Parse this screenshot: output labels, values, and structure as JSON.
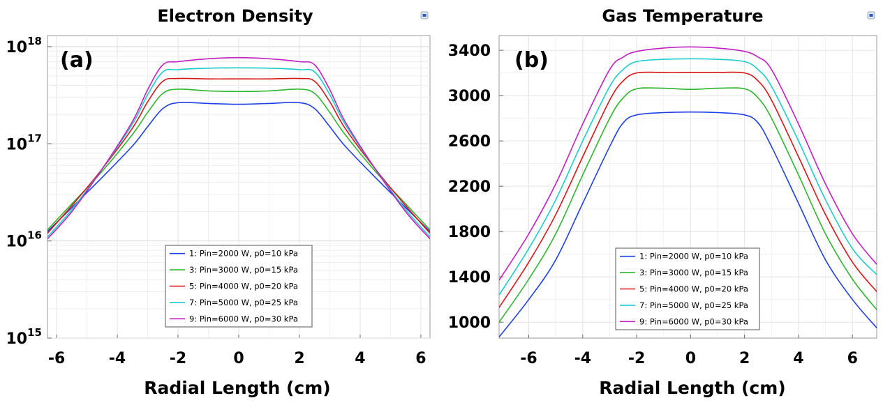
{
  "chart_data": [
    {
      "type": "line",
      "title": "Electron Density",
      "panel_tag": "(a)",
      "xlabel": "Radial Length (cm)",
      "ylabel": "",
      "yscale": "log",
      "xlim": [
        -6.3,
        6.3
      ],
      "ylim": [
        1000000000000000.0,
        1.3e+18
      ],
      "x_ticks": [
        -6,
        -4,
        -2,
        0,
        2,
        4,
        6
      ],
      "x_tick_labels": [
        "-6",
        "-4",
        "-2",
        "0",
        "2",
        "4",
        "6"
      ],
      "y_ticks": [
        {
          "base": "10",
          "exp": "15",
          "value": 1000000000000000.0
        },
        {
          "base": "10",
          "exp": "16",
          "value": 1e+16
        },
        {
          "base": "10",
          "exp": "17",
          "value": 1e+17
        },
        {
          "base": "10",
          "exp": "18",
          "value": 1e+18
        }
      ],
      "legend_position": "bottom-center",
      "series": [
        {
          "name": "1: Pin=2000 W, p0=10 kPa",
          "color": "#1f3fe6",
          "x": [
            -6.3,
            -5.5,
            -4.5,
            -3.5,
            -3.0,
            -2.5,
            -2.0,
            -1.0,
            0,
            1.0,
            2.0,
            2.5,
            3.0,
            3.5,
            4.5,
            5.5,
            6.3
          ],
          "y": [
            1.25e+16,
            2.2e+16,
            4.5e+16,
            9.5e+16,
            1.5e+17,
            2.3e+17,
            2.65e+17,
            2.6e+17,
            2.55e+17,
            2.6e+17,
            2.65e+17,
            2.3e+17,
            1.5e+17,
            9.5e+16,
            4.5e+16,
            2.2e+16,
            1.25e+16
          ]
        },
        {
          "name": "3: Pin=3000 W, p0=15 kPa",
          "color": "#2db52d",
          "x": [
            -6.3,
            -5.5,
            -4.5,
            -3.5,
            -3.0,
            -2.5,
            -2.0,
            -1.0,
            0,
            1.0,
            2.0,
            2.5,
            3.0,
            3.5,
            4.5,
            5.5,
            6.3
          ],
          "y": [
            1.3e+16,
            2.4e+16,
            5.2e+16,
            1.25e+17,
            2.1e+17,
            3.3e+17,
            3.65e+17,
            3.5e+17,
            3.45e+17,
            3.5e+17,
            3.65e+17,
            3.3e+17,
            2.1e+17,
            1.25e+17,
            5.2e+16,
            2.4e+16,
            1.3e+16
          ]
        },
        {
          "name": "5: Pin=4000 W, p0=20 kPa",
          "color": "#d91414",
          "x": [
            -6.3,
            -5.5,
            -4.5,
            -3.5,
            -3.0,
            -2.5,
            -2.0,
            -1.0,
            0,
            1.0,
            2.0,
            2.5,
            3.0,
            3.5,
            4.5,
            5.5,
            6.3
          ],
          "y": [
            1.2e+16,
            2.3e+16,
            5.5e+16,
            1.45e+17,
            2.7e+17,
            4.4e+17,
            4.7e+17,
            4.65e+17,
            4.65e+17,
            4.65e+17,
            4.7e+17,
            4.4e+17,
            2.7e+17,
            1.45e+17,
            5.5e+16,
            2.3e+16,
            1.2e+16
          ]
        },
        {
          "name": "7: Pin=5000 W, p0=25 kPa",
          "color": "#19cccc",
          "x": [
            -6.3,
            -5.5,
            -4.5,
            -3.5,
            -3.0,
            -2.5,
            -2.0,
            -1.0,
            0,
            1.0,
            2.0,
            2.5,
            3.0,
            3.5,
            4.5,
            5.5,
            6.3
          ],
          "y": [
            1.1e+16,
            2.1e+16,
            5.5e+16,
            1.6e+17,
            3.2e+17,
            5.5e+17,
            5.8e+17,
            6e+17,
            6.05e+17,
            6e+17,
            5.8e+17,
            5.5e+17,
            3.2e+17,
            1.6e+17,
            5.5e+16,
            2.1e+16,
            1.1e+16
          ]
        },
        {
          "name": "9: Pin=6000 W, p0=30 kPa",
          "color": "#c21ec2",
          "x": [
            -6.3,
            -5.5,
            -4.5,
            -3.5,
            -3.0,
            -2.5,
            -2.0,
            -1.0,
            0,
            1.0,
            2.0,
            2.5,
            3.0,
            3.5,
            4.5,
            5.5,
            6.3
          ],
          "y": [
            1.05e+16,
            2e+16,
            5.5e+16,
            1.7e+17,
            3.6e+17,
            6.5e+17,
            7e+17,
            7.5e+17,
            7.7e+17,
            7.5e+17,
            7e+17,
            6.5e+17,
            3.6e+17,
            1.7e+17,
            5.5e+16,
            2e+16,
            1.05e+16
          ]
        }
      ]
    },
    {
      "type": "line",
      "title": "Gas Temperature",
      "panel_tag": "(b)",
      "xlabel": "Radial Length (cm)",
      "ylabel": "",
      "yscale": "linear",
      "xlim": [
        -7.1,
        6.9
      ],
      "ylim": [
        860,
        3530
      ],
      "x_ticks": [
        -6,
        -4,
        -2,
        0,
        2,
        4,
        6
      ],
      "x_tick_labels": [
        "-6",
        "-4",
        "-2",
        "0",
        "2",
        "4",
        "6"
      ],
      "y_ticks": [
        {
          "label": "1000",
          "value": 1000
        },
        {
          "label": "1400",
          "value": 1400
        },
        {
          "label": "1800",
          "value": 1800
        },
        {
          "label": "2200",
          "value": 2200
        },
        {
          "label": "2600",
          "value": 2600
        },
        {
          "label": "3000",
          "value": 3000
        },
        {
          "label": "3400",
          "value": 3400
        }
      ],
      "legend_position": "bottom-center",
      "series": [
        {
          "name": "1: Pin=2000 W, p0=10 kPa",
          "color": "#1f3fe6",
          "x": [
            -7.1,
            -6.0,
            -5.0,
            -4.0,
            -3.0,
            -2.5,
            -2.0,
            -1.0,
            0,
            1.0,
            2.0,
            2.5,
            3.0,
            4.0,
            5.0,
            6.0,
            6.9
          ],
          "y": [
            870,
            1200,
            1550,
            2050,
            2550,
            2760,
            2830,
            2850,
            2855,
            2850,
            2830,
            2760,
            2550,
            2050,
            1550,
            1200,
            950
          ]
        },
        {
          "name": "3: Pin=3000 W, p0=15 kPa",
          "color": "#2db52d",
          "x": [
            -7.1,
            -6.0,
            -5.0,
            -4.0,
            -3.0,
            -2.5,
            -2.0,
            -1.0,
            0,
            1.0,
            2.0,
            2.5,
            3.0,
            4.0,
            5.0,
            6.0,
            6.9
          ],
          "y": [
            1000,
            1380,
            1780,
            2300,
            2800,
            2980,
            3060,
            3065,
            3055,
            3065,
            3060,
            2980,
            2800,
            2300,
            1780,
            1380,
            1110
          ]
        },
        {
          "name": "5: Pin=4000 W, p0=20 kPa",
          "color": "#d91414",
          "x": [
            -7.1,
            -6.0,
            -5.0,
            -4.0,
            -3.0,
            -2.5,
            -2.0,
            -1.0,
            0,
            1.0,
            2.0,
            2.5,
            3.0,
            4.0,
            5.0,
            6.0,
            6.9
          ],
          "y": [
            1130,
            1530,
            1950,
            2460,
            2960,
            3130,
            3200,
            3205,
            3205,
            3205,
            3200,
            3130,
            2960,
            2460,
            1950,
            1530,
            1270
          ]
        },
        {
          "name": "7: Pin=5000 W, p0=25 kPa",
          "color": "#19cccc",
          "x": [
            -7.1,
            -6.0,
            -5.0,
            -4.0,
            -3.0,
            -2.5,
            -2.0,
            -1.0,
            0,
            1.0,
            2.0,
            2.5,
            3.0,
            4.0,
            5.0,
            6.0,
            6.9
          ],
          "y": [
            1240,
            1650,
            2080,
            2600,
            3080,
            3230,
            3300,
            3320,
            3325,
            3320,
            3300,
            3230,
            3080,
            2600,
            2080,
            1650,
            1420
          ]
        },
        {
          "name": "9: Pin=6000 W, p0=30 kPa",
          "color": "#c21ec2",
          "x": [
            -7.1,
            -6.0,
            -5.0,
            -4.0,
            -3.0,
            -2.5,
            -2.0,
            -1.0,
            0,
            1.0,
            2.0,
            2.5,
            3.0,
            4.0,
            5.0,
            6.0,
            6.9
          ],
          "y": [
            1370,
            1780,
            2220,
            2750,
            3230,
            3340,
            3390,
            3420,
            3430,
            3420,
            3390,
            3340,
            3230,
            2750,
            2220,
            1780,
            1510
          ]
        }
      ]
    }
  ]
}
